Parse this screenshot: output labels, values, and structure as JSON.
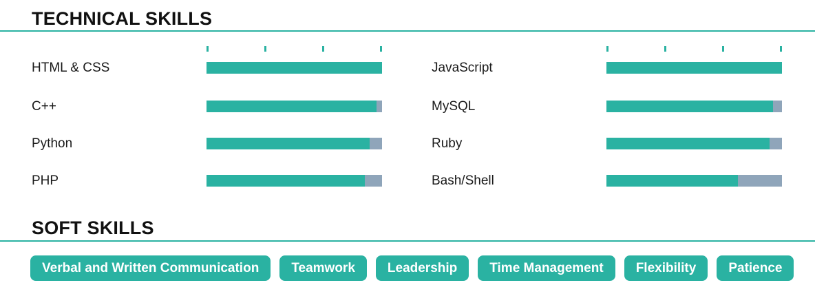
{
  "colors": {
    "accent_teal": "#2ab2a2",
    "bar_remainder_gray": "#8fa5ba",
    "heading_text": "#111111",
    "label_text": "#1a1a1a",
    "tag_text": "#ffffff"
  },
  "technical_skills": {
    "title": "TECHNICAL SKILLS",
    "columns": [
      {
        "skills": [
          {
            "name": "HTML & CSS",
            "level_percent": 100
          },
          {
            "name": "C++",
            "level_percent": 97
          },
          {
            "name": "Python",
            "level_percent": 93
          },
          {
            "name": "PHP",
            "level_percent": 90
          }
        ]
      },
      {
        "skills": [
          {
            "name": "JavaScript",
            "level_percent": 100
          },
          {
            "name": "MySQL",
            "level_percent": 95
          },
          {
            "name": "Ruby",
            "level_percent": 93
          },
          {
            "name": "Bash/Shell",
            "level_percent": 75
          }
        ]
      }
    ]
  },
  "soft_skills": {
    "title": "SOFT SKILLS",
    "tags": [
      "Verbal and Written Communication",
      "Teamwork",
      "Leadership",
      "Time Management",
      "Flexibility",
      "Patience"
    ]
  }
}
